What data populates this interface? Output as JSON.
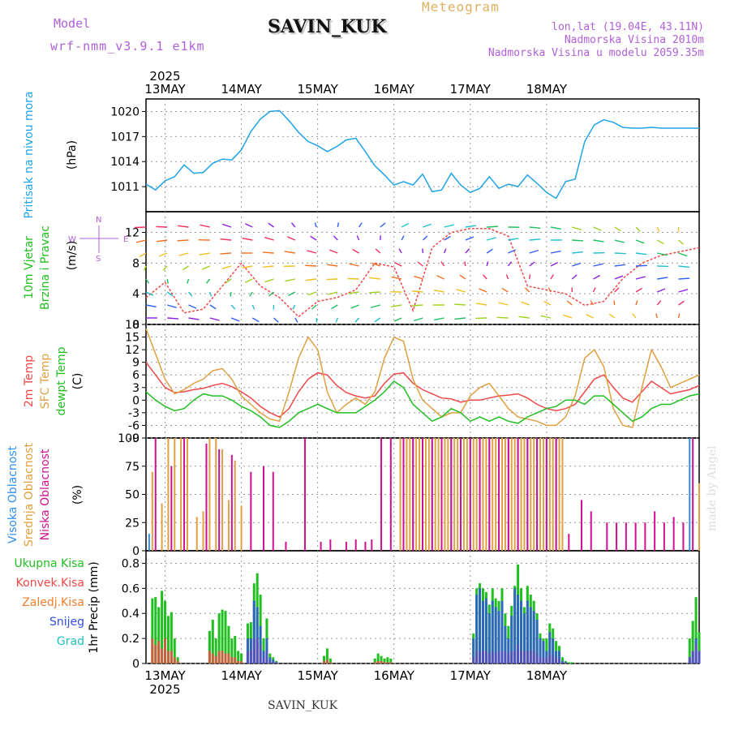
{
  "header": {
    "model_label": "Model",
    "model_run": "wrf-nmm_v3.9.1 e1km",
    "station": "SAVIN_KUK",
    "title": "Meteogram",
    "lonlat": "lon,lat (19.04E, 43.11N)",
    "altitude": "Nadmorska Visina 2010m",
    "model_altitude": "Nadmorska Visina u modelu 2059.35m"
  },
  "footer": {
    "station": "SAVIN_KUK",
    "credit": "made by Angel"
  },
  "colors": {
    "pressure": "#1ea4e8",
    "wind_label": "#20c020",
    "temp2m": "#f04848",
    "sfc": "#e0a040",
    "dewpt": "#20c020",
    "high_cloud": "#3090f0",
    "mid_cloud": "#e0a040",
    "low_cloud": "#d01090",
    "purple": "#b060d8",
    "ukupna": "#20c020",
    "konvek": "#f04848",
    "zaledj": "#f08030",
    "snijeg": "#3050e0",
    "grad": "#20c0c0"
  },
  "chart_data": [
    {
      "type": "line",
      "id": "pressure",
      "ylabel": [
        "Pritisak na nivou mora",
        "(hPa)"
      ],
      "yticks": [
        1011,
        1014,
        1017,
        1020
      ],
      "ylim": [
        1008,
        1021.5
      ],
      "x_hours": [
        0,
        3,
        6,
        9,
        12,
        15,
        18,
        21,
        24,
        27,
        30,
        33,
        36,
        39,
        42,
        45,
        48,
        51,
        54,
        57,
        60,
        63,
        66,
        69,
        72,
        75,
        78,
        81,
        84,
        87,
        90,
        93,
        96,
        99,
        102,
        105,
        108,
        111,
        114,
        117,
        120,
        123,
        126,
        129,
        132,
        135,
        138,
        141,
        144,
        147,
        150,
        153,
        156,
        159,
        162,
        165,
        168,
        171,
        174
      ],
      "values": [
        1011.3,
        1010.6,
        1011.7,
        1012.2,
        1013.6,
        1012.6,
        1012.7,
        1013.8,
        1014.3,
        1014.2,
        1015.4,
        1017.6,
        1019.1,
        1020.0,
        1020.1,
        1018.9,
        1017.5,
        1016.4,
        1015.9,
        1015.2,
        1015.8,
        1016.6,
        1016.8,
        1015.2,
        1013.5,
        1012.4,
        1011.2,
        1011.6,
        1011.2,
        1012.5,
        1010.4,
        1010.6,
        1012.6,
        1011.2,
        1010.3,
        1010.8,
        1012.2,
        1010.8,
        1011.3,
        1011.0,
        1012.4,
        1011.4,
        1010.3,
        1009.6,
        1011.6,
        1011.9,
        1016.4,
        1018.4,
        1019.0,
        1018.7,
        1018.1,
        1018.0,
        1018.0,
        1018.1,
        1018.0,
        1018.0,
        1018.0,
        1018.0,
        1018.0
      ],
      "grid": true
    },
    {
      "type": "line",
      "id": "wind",
      "ylabel": [
        "10m Vjetar",
        "Brzina i Pravac",
        "(m/s)"
      ],
      "compass": {
        "n": "N",
        "s": "S",
        "w": "W",
        "e": "E"
      },
      "yticks": [
        0,
        4,
        8,
        12
      ],
      "ylim": [
        0,
        14.7
      ],
      "x_hours": [
        0,
        6,
        12,
        18,
        24,
        30,
        36,
        42,
        48,
        54,
        60,
        66,
        72,
        78,
        84,
        90,
        96,
        102,
        108,
        114,
        120,
        126,
        132,
        138,
        144,
        150,
        156,
        162,
        168,
        174
      ],
      "values": [
        3.5,
        5.5,
        1.5,
        2.0,
        5.0,
        8.0,
        5.0,
        3.5,
        1.0,
        3.0,
        3.5,
        4.5,
        8.0,
        7.5,
        1.8,
        10.0,
        12.0,
        12.5,
        12.5,
        11.5,
        5.0,
        4.5,
        4.0,
        2.5,
        3.0,
        6.0,
        8.0,
        9.0,
        9.5,
        10.0
      ],
      "grid": true
    },
    {
      "type": "line",
      "id": "temperature",
      "ylabel": [
        "2m Temp",
        "SFC Temp",
        "dewpt Temp",
        "(C)"
      ],
      "yticks": [
        -9,
        -6,
        -3,
        0,
        3,
        6,
        9,
        12,
        15,
        18
      ],
      "ylim": [
        -9,
        18
      ],
      "x_hours": [
        0,
        3,
        6,
        9,
        12,
        15,
        18,
        21,
        24,
        27,
        30,
        33,
        36,
        39,
        42,
        45,
        48,
        51,
        54,
        57,
        60,
        63,
        66,
        69,
        72,
        75,
        78,
        81,
        84,
        87,
        90,
        93,
        96,
        99,
        102,
        105,
        108,
        111,
        114,
        117,
        120,
        123,
        126,
        129,
        132,
        135,
        138,
        141,
        144,
        147,
        150,
        153,
        156,
        159,
        162,
        165,
        168,
        171,
        174
      ],
      "series": [
        {
          "name": "2m Temp",
          "values": [
            9,
            6,
            3,
            1.8,
            2,
            2.5,
            2.8,
            3.5,
            4,
            3.2,
            2,
            0.5,
            -1.5,
            -3,
            -4,
            -2,
            2,
            5,
            6.5,
            6,
            3.5,
            1.8,
            1,
            0.5,
            1,
            4,
            6.2,
            6.5,
            4,
            2.5,
            1.5,
            0.5,
            0.3,
            -0.5,
            0,
            0,
            0.5,
            1,
            1.2,
            1.5,
            0.5,
            -1,
            -2,
            -2.5,
            -2,
            -1,
            2,
            5,
            6,
            3,
            0.5,
            -0.5,
            2,
            4.5,
            3,
            1.5,
            2,
            2.5,
            3.5
          ]
        },
        {
          "name": "SFC Temp",
          "values": [
            17,
            11,
            5,
            1.5,
            2.5,
            4,
            5,
            7,
            7.5,
            5,
            1,
            -1,
            -3,
            -4.5,
            -5,
            2,
            10,
            15,
            12,
            2,
            -3,
            -1,
            0.5,
            -1,
            2,
            10,
            15,
            14,
            5,
            0,
            -2,
            -4,
            -3,
            -3,
            1,
            3,
            4,
            1,
            -2,
            -4,
            -4.5,
            -5,
            -6,
            -6,
            -4,
            1,
            10,
            12,
            8,
            -2,
            -6,
            -6.5,
            3,
            12,
            8,
            3,
            4,
            5,
            6
          ]
        },
        {
          "name": "dewpt Temp",
          "values": [
            2,
            0,
            -1.5,
            -2.5,
            -2,
            0,
            1.5,
            1,
            1,
            0,
            -1.5,
            -2.5,
            -4,
            -6,
            -6.5,
            -5,
            -3,
            -2,
            -1,
            -2,
            -3,
            -3,
            -3,
            -1.5,
            0,
            2,
            4.5,
            3,
            -1,
            -3,
            -5,
            -4,
            -2,
            -3,
            -5,
            -4,
            -5,
            -4,
            -5,
            -5.5,
            -4,
            -3,
            -2,
            -1.5,
            0,
            0,
            -1,
            1,
            1,
            -1,
            -3,
            -5,
            -4,
            -2,
            -1,
            -1,
            0,
            1,
            1.5
          ]
        }
      ],
      "grid": true
    },
    {
      "type": "bar",
      "id": "clouds",
      "ylabel": [
        "Visoka Oblacnost",
        "Srednja Oblacnost",
        "Niska Oblacnost",
        "(%)"
      ],
      "yticks": [
        0,
        25,
        50,
        75,
        100
      ],
      "ylim": [
        0,
        100
      ],
      "series": [
        {
          "name": "Visoka Oblacnost",
          "x_hours": [
            1,
            81,
            84,
            87,
            90,
            93,
            96,
            99,
            102,
            105,
            108,
            111,
            114,
            117,
            120,
            123,
            126,
            129,
            171
          ],
          "values": [
            15,
            100,
            100,
            100,
            100,
            100,
            100,
            100,
            100,
            100,
            100,
            100,
            100,
            100,
            100,
            100,
            100,
            100,
            100
          ]
        },
        {
          "name": "Srednja Oblacnost",
          "x_hours": [
            2,
            5,
            7,
            9,
            11,
            13,
            16,
            18,
            20,
            22,
            24,
            26,
            28,
            30,
            80,
            82,
            83,
            85,
            86,
            88,
            89,
            91,
            92,
            94,
            95,
            97,
            98,
            100,
            101,
            103,
            104,
            106,
            107,
            109,
            110,
            112,
            113,
            115,
            116,
            118,
            119,
            121,
            122,
            124,
            125,
            127,
            128,
            130,
            131,
            174
          ],
          "values": [
            70,
            42,
            100,
            100,
            100,
            100,
            30,
            35,
            100,
            100,
            90,
            45,
            80,
            40,
            100,
            100,
            100,
            100,
            100,
            100,
            100,
            100,
            100,
            100,
            100,
            100,
            100,
            100,
            100,
            100,
            100,
            100,
            100,
            100,
            100,
            100,
            100,
            100,
            100,
            100,
            100,
            100,
            100,
            100,
            100,
            100,
            100,
            100,
            100,
            60
          ]
        },
        {
          "name": "Niska Oblacnost",
          "x_hours": [
            3,
            8,
            12,
            19,
            23,
            27,
            33,
            37,
            40,
            44,
            50,
            55,
            58,
            63,
            66,
            69,
            71,
            74,
            77,
            81,
            84,
            87,
            90,
            93,
            96,
            99,
            102,
            105,
            108,
            111,
            114,
            117,
            120,
            123,
            126,
            129,
            133,
            137,
            140,
            145,
            148,
            151,
            154,
            157,
            160,
            163,
            166,
            169,
            172
          ],
          "values": [
            100,
            75,
            100,
            95,
            90,
            85,
            70,
            75,
            70,
            8,
            100,
            8,
            10,
            8,
            10,
            8,
            10,
            100,
            100,
            100,
            100,
            100,
            100,
            100,
            100,
            100,
            100,
            100,
            100,
            100,
            100,
            100,
            100,
            100,
            100,
            100,
            15,
            45,
            35,
            25,
            25,
            25,
            25,
            25,
            35,
            25,
            30,
            25,
            100
          ]
        }
      ],
      "grid": true
    },
    {
      "type": "bar",
      "id": "precip",
      "ylabel": [
        "1hr Precip (mm)"
      ],
      "legend": [
        "Ukupna Kisa",
        "Konvek.Kisa",
        "Zaledj.Kisa",
        "Snijeg",
        "Grad"
      ],
      "yticks": [
        0,
        0.2,
        0.4,
        0.6,
        0.8
      ],
      "ylim": [
        0,
        0.9
      ],
      "x_hours": [
        2,
        3,
        4,
        5,
        6,
        7,
        8,
        9,
        10,
        11,
        12,
        13,
        20,
        21,
        22,
        23,
        24,
        25,
        26,
        27,
        28,
        29,
        30,
        32,
        33,
        34,
        35,
        36,
        37,
        38,
        39,
        40,
        41,
        56,
        57,
        58,
        72,
        73,
        74,
        75,
        76,
        77,
        103,
        104,
        105,
        106,
        107,
        108,
        109,
        110,
        111,
        112,
        113,
        114,
        115,
        116,
        117,
        118,
        119,
        120,
        121,
        122,
        123,
        124,
        125,
        126,
        127,
        128,
        129,
        130,
        131,
        132,
        133,
        134,
        171,
        172,
        173,
        174
      ],
      "series": [
        {
          "name": "Ukupna Kisa",
          "values": [
            0.52,
            0.53,
            0.45,
            0.58,
            0.5,
            0.38,
            0.41,
            0.2,
            0.05,
            0,
            0,
            0,
            0.26,
            0.35,
            0.2,
            0.4,
            0.43,
            0.42,
            0.3,
            0.2,
            0.22,
            0.1,
            0.08,
            0.32,
            0.33,
            0.64,
            0.72,
            0.55,
            0.2,
            0.36,
            0.08,
            0.05,
            0.02,
            0.06,
            0.12,
            0.04,
            0.04,
            0.08,
            0.06,
            0.04,
            0.05,
            0.04,
            0.24,
            0.6,
            0.64,
            0.6,
            0.57,
            0.47,
            0.6,
            0.52,
            0.5,
            0.6,
            0.4,
            0.3,
            0.46,
            0.62,
            0.79,
            0.6,
            0.45,
            0.62,
            0.55,
            0.5,
            0.4,
            0.24,
            0.2,
            0.2,
            0.32,
            0.28,
            0.18,
            0.14,
            0.05,
            0.02,
            0.01,
            0.01,
            0.2,
            0.34,
            0.53,
            0.25
          ]
        },
        {
          "name": "Konvek.Kisa",
          "values": [
            0.2,
            0.15,
            0.18,
            0.12,
            0.2,
            0.1,
            0.1,
            0.05,
            0.02,
            0,
            0,
            0,
            0.1,
            0.08,
            0.06,
            0.1,
            0.1,
            0.08,
            0.08,
            0.05,
            0.05,
            0.02,
            0.02,
            0.1,
            0.1,
            0.2,
            0.2,
            0.15,
            0.05,
            0.1,
            0.02,
            0.01,
            0.01,
            0.02,
            0.03,
            0.01,
            0.01,
            0.02,
            0.02,
            0.01,
            0.01,
            0.01,
            0.05,
            0.1,
            0.1,
            0.1,
            0.1,
            0.08,
            0.1,
            0.08,
            0.1,
            0.1,
            0.1,
            0.08,
            0.1,
            0.1,
            0.15,
            0.1,
            0.1,
            0.1,
            0.1,
            0.1,
            0.08,
            0.05,
            0.05,
            0.05,
            0.08,
            0.06,
            0.05,
            0.04,
            0.01,
            0.01,
            0,
            0,
            0.05,
            0.1,
            0.15,
            0.1
          ]
        },
        {
          "name": "Snijeg",
          "values": [
            0,
            0,
            0,
            0,
            0,
            0,
            0,
            0,
            0,
            0,
            0,
            0,
            0,
            0,
            0,
            0,
            0,
            0,
            0,
            0,
            0,
            0,
            0,
            0.2,
            0.2,
            0.5,
            0.45,
            0.3,
            0.1,
            0.2,
            0.05,
            0.03,
            0.01,
            0,
            0,
            0,
            0,
            0,
            0,
            0,
            0,
            0,
            0.2,
            0.55,
            0.6,
            0.5,
            0.52,
            0.4,
            0.5,
            0.45,
            0.42,
            0.5,
            0.3,
            0.2,
            0.38,
            0.6,
            0.55,
            0.5,
            0.4,
            0.5,
            0.45,
            0.42,
            0.35,
            0.2,
            0.18,
            0.1,
            0.25,
            0.2,
            0.1,
            0.1,
            0.02,
            0.01,
            0,
            0,
            0.05,
            0.1,
            0.2,
            0.1
          ]
        }
      ],
      "grid": true
    }
  ],
  "time_axis": {
    "year": "2025",
    "days": [
      {
        "label": "13MAY",
        "hour": 6
      },
      {
        "label": "14MAY",
        "hour": 30
      },
      {
        "label": "15MAY",
        "hour": 54
      },
      {
        "label": "16MAY",
        "hour": 78
      },
      {
        "label": "17MAY",
        "hour": 102
      },
      {
        "label": "18MAY",
        "hour": 126
      }
    ],
    "x_range_hours": [
      0,
      174
    ]
  }
}
